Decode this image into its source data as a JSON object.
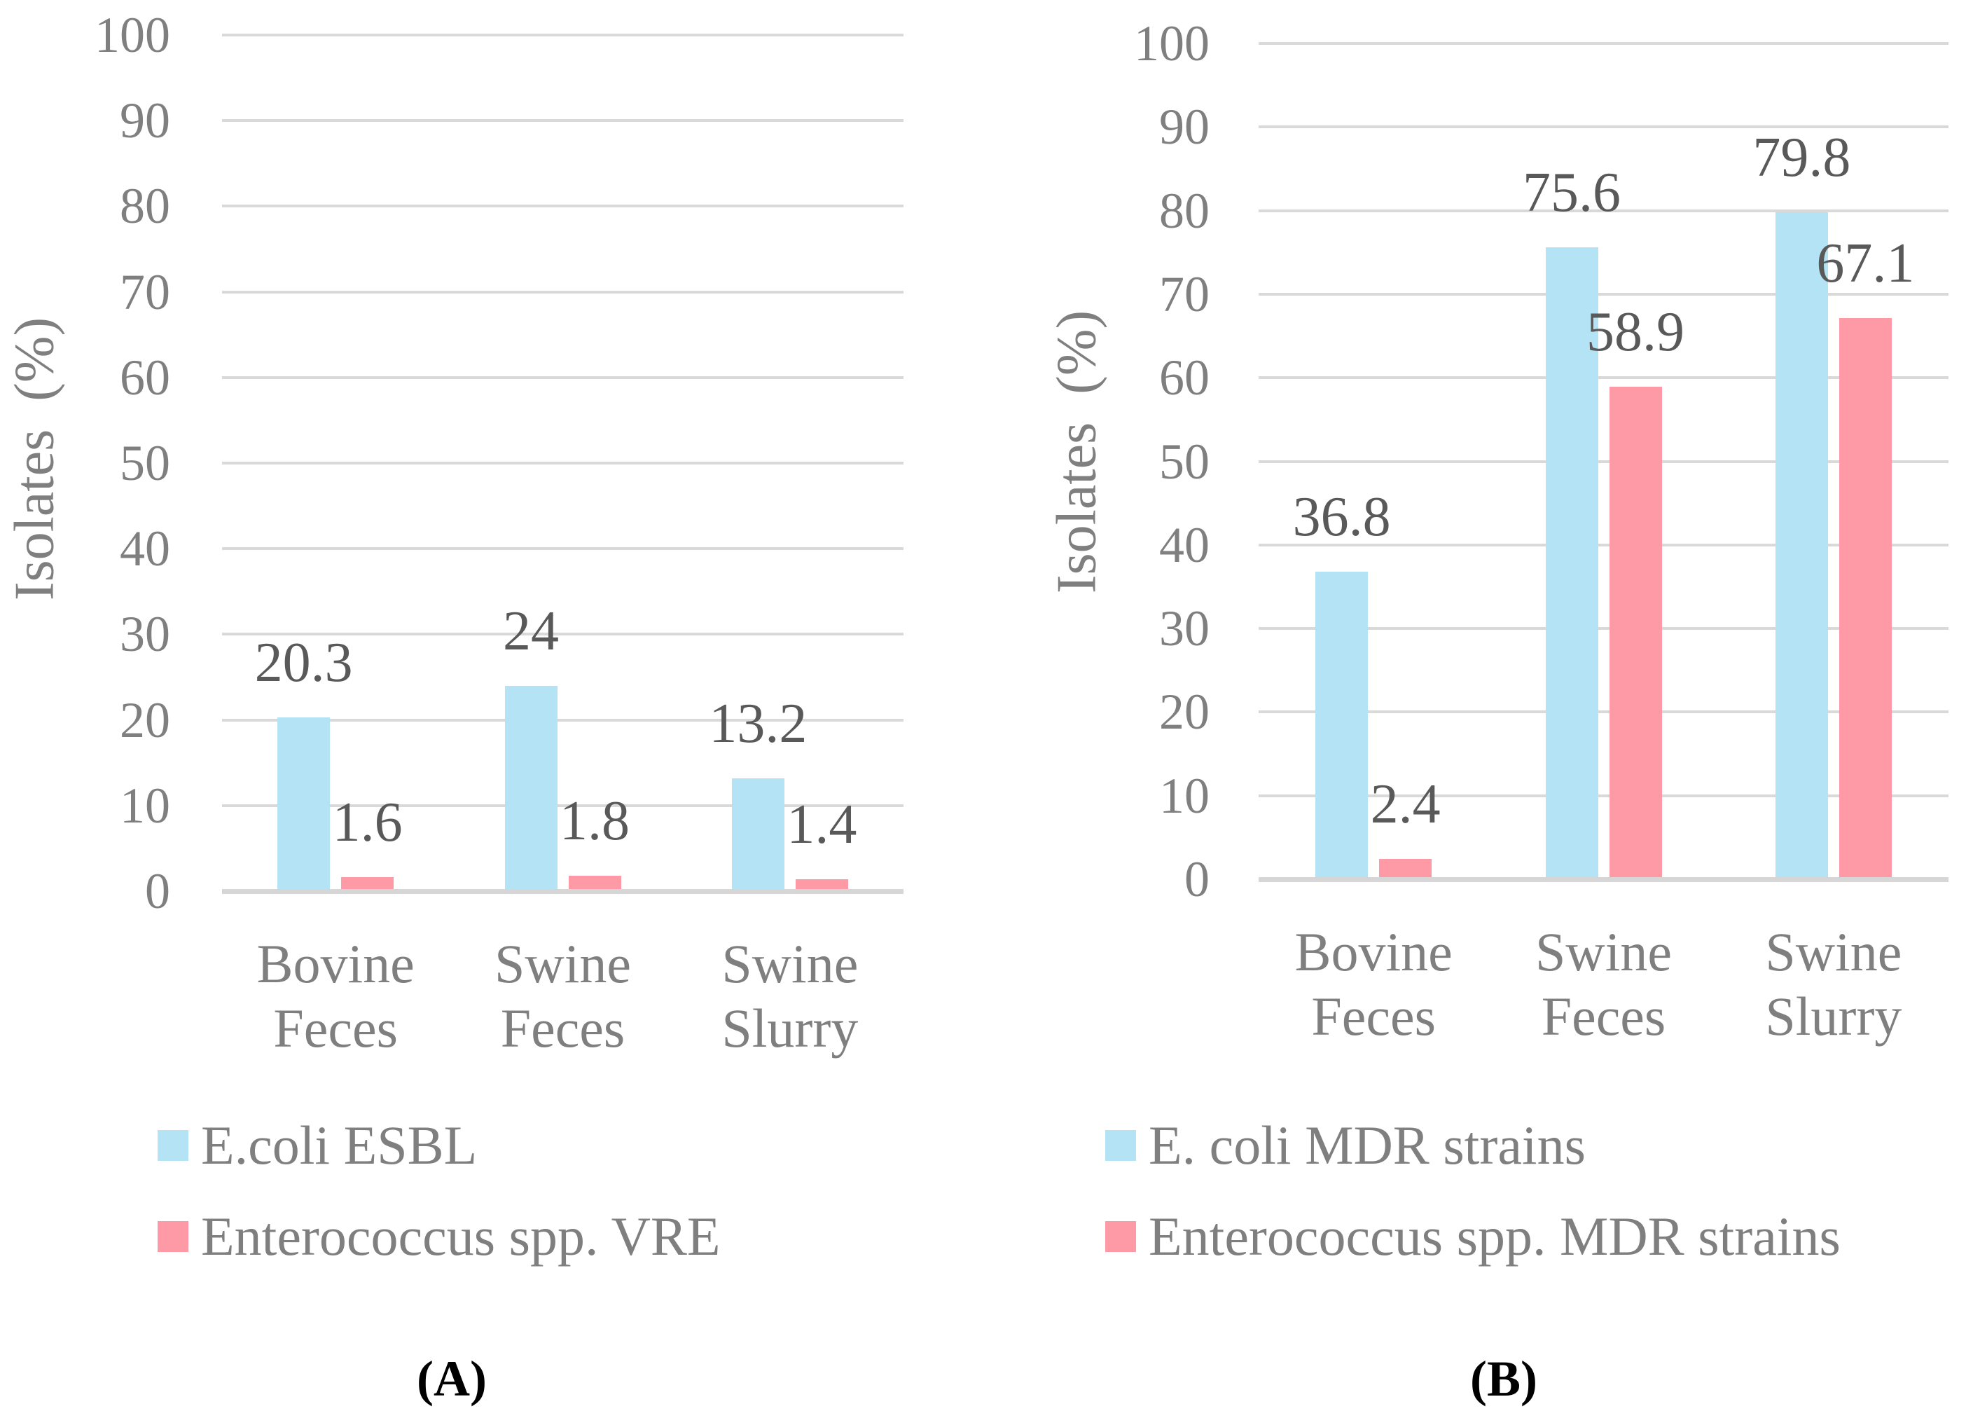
{
  "figure": {
    "captions": {
      "a": "(A)",
      "b": "(B)"
    },
    "colors": {
      "series_blue": "#B3E3F4",
      "series_pink": "#FD9AA5",
      "gridline": "#D9D9D9",
      "axis_line": "#D6D6D6",
      "tick_text": "#7F7F7F",
      "data_label_text": "#595959",
      "caption_text": "#000000"
    }
  },
  "chart_data": [
    {
      "id": "A",
      "type": "bar",
      "title": "",
      "xlabel": "",
      "ylabel": "Isolates  (%)",
      "ylim": [
        0,
        100
      ],
      "yticks": [
        0,
        10,
        20,
        30,
        40,
        50,
        60,
        70,
        80,
        90,
        100
      ],
      "grid": true,
      "legend_position": "bottom-left",
      "categories": [
        "Bovine Feces",
        "Swine Feces",
        "Swine Slurry"
      ],
      "series": [
        {
          "name": "E.coli ESBL",
          "color_key": "series_blue",
          "values": [
            20.3,
            24,
            13.2
          ]
        },
        {
          "name": "Enterococcus spp. VRE",
          "color_key": "series_pink",
          "values": [
            1.6,
            1.8,
            1.4
          ]
        }
      ]
    },
    {
      "id": "B",
      "type": "bar",
      "title": "",
      "xlabel": "",
      "ylabel": "Isolates  (%)",
      "ylim": [
        0,
        100
      ],
      "yticks": [
        0,
        10,
        20,
        30,
        40,
        50,
        60,
        70,
        80,
        90,
        100
      ],
      "grid": true,
      "legend_position": "bottom-left",
      "categories": [
        "Bovine Feces",
        "Swine Feces",
        "Swine Slurry"
      ],
      "series": [
        {
          "name": "E. coli MDR strains",
          "color_key": "series_blue",
          "values": [
            36.8,
            75.6,
            79.8
          ]
        },
        {
          "name": "Enterococcus spp. MDR strains",
          "color_key": "series_pink",
          "values": [
            2.4,
            58.9,
            67.1
          ]
        }
      ]
    }
  ]
}
